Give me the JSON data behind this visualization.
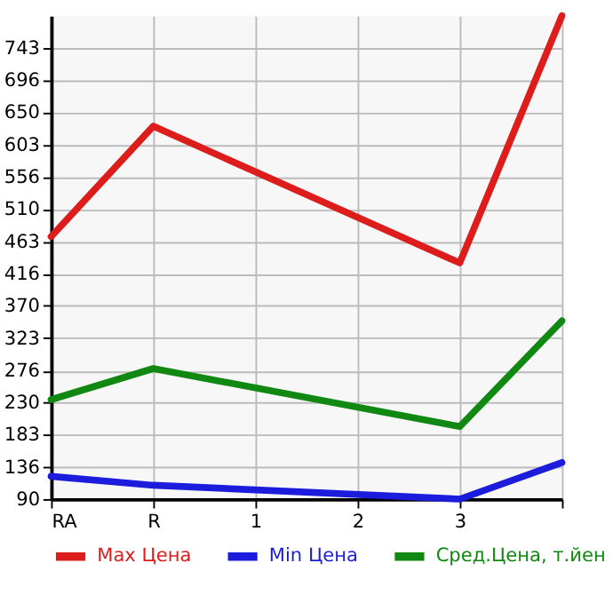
{
  "chart_data": {
    "type": "line",
    "categories": [
      "RA",
      "R",
      "1",
      "2",
      "3",
      null
    ],
    "series": [
      {
        "name": "Max Цена",
        "color": "#dd1c1c",
        "values": [
          470,
          630,
          null,
          null,
          432,
          790
        ]
      },
      {
        "name": "Min Цена",
        "color": "#1c1cdd",
        "values": [
          123,
          110,
          null,
          null,
          90,
          143
        ]
      },
      {
        "name": "Сред.Цена, т.йен",
        "color": "#118811",
        "values": [
          234,
          279,
          null,
          null,
          195,
          348
        ]
      }
    ],
    "ylim": [
      90,
      790
    ],
    "yticks": [
      90,
      136,
      183,
      230,
      276,
      323,
      370,
      416,
      463,
      510,
      556,
      603,
      650,
      696,
      743
    ],
    "grid": true,
    "legend": "bottom",
    "marker": "none",
    "line_style": "solid"
  }
}
